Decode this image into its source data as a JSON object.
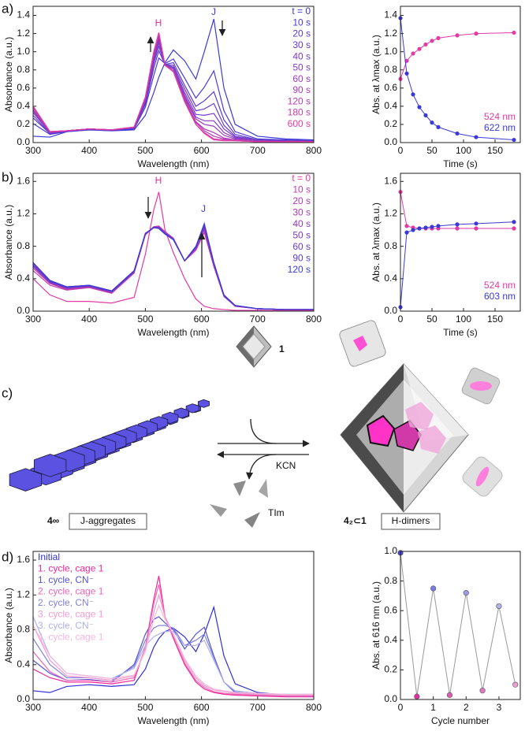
{
  "chart_data": [
    {
      "type": "line",
      "panel_label": "a)",
      "x_label": "Wavelength (nm)",
      "y_label": "Absorbance (a.u.)",
      "xlim": [
        300,
        800
      ],
      "xticks": [
        300,
        400,
        500,
        600,
        700,
        800
      ],
      "ylim": [
        0,
        1.5
      ],
      "yticks": [
        {
          "value": 0,
          "label": "0.0"
        },
        0.2,
        0.4,
        0.6,
        0.8,
        {
          "value": 1,
          "label": "1.0"
        },
        1.2,
        1.4
      ],
      "legend": "upper right",
      "annotations": [
        {
          "text": "H",
          "color": "#e0309f"
        },
        {
          "text": "J",
          "color": "#3a3ad6"
        }
      ],
      "x": [
        300,
        330,
        360,
        400,
        440,
        480,
        500,
        515,
        524,
        535,
        550,
        570,
        590,
        605,
        622,
        640,
        660,
        700,
        750,
        800
      ],
      "series": [
        {
          "name": "t = 0",
          "color": "#3a3ad6",
          "values": [
            0.07,
            0.06,
            0.12,
            0.14,
            0.13,
            0.14,
            0.3,
            0.55,
            0.72,
            0.88,
            1.02,
            0.9,
            0.7,
            1.0,
            1.36,
            0.6,
            0.2,
            0.07,
            0.04,
            0.03
          ]
        },
        {
          "name": "10 s",
          "color": "#4a3ad4",
          "values": [
            0.21,
            0.09,
            0.12,
            0.14,
            0.13,
            0.15,
            0.39,
            0.74,
            0.93,
            0.87,
            0.92,
            0.71,
            0.49,
            0.61,
            0.79,
            0.35,
            0.12,
            0.04,
            0.03,
            0.02
          ]
        },
        {
          "name": "20 s",
          "color": "#5a3ad0",
          "values": [
            0.27,
            0.1,
            0.13,
            0.15,
            0.14,
            0.16,
            0.42,
            0.82,
            1.01,
            0.86,
            0.88,
            0.63,
            0.4,
            0.46,
            0.56,
            0.25,
            0.09,
            0.03,
            0.02,
            0.02
          ]
        },
        {
          "name": "30 s",
          "color": "#6a3acb",
          "values": [
            0.3,
            0.1,
            0.13,
            0.15,
            0.14,
            0.16,
            0.44,
            0.87,
            1.06,
            0.86,
            0.85,
            0.59,
            0.35,
            0.37,
            0.43,
            0.19,
            0.07,
            0.03,
            0.02,
            0.02
          ]
        },
        {
          "name": "40 s",
          "color": "#7a3ac6",
          "values": [
            0.33,
            0.11,
            0.13,
            0.15,
            0.14,
            0.16,
            0.46,
            0.9,
            1.1,
            0.86,
            0.83,
            0.55,
            0.31,
            0.3,
            0.32,
            0.15,
            0.06,
            0.02,
            0.02,
            0.01
          ]
        },
        {
          "name": "50 s",
          "color": "#8a3ac1",
          "values": [
            0.35,
            0.11,
            0.13,
            0.15,
            0.14,
            0.17,
            0.47,
            0.93,
            1.13,
            0.85,
            0.82,
            0.52,
            0.28,
            0.24,
            0.24,
            0.11,
            0.05,
            0.02,
            0.01,
            0.01
          ]
        },
        {
          "name": "60 s",
          "color": "#9a3abc",
          "values": [
            0.36,
            0.11,
            0.13,
            0.15,
            0.14,
            0.17,
            0.48,
            0.95,
            1.16,
            0.85,
            0.81,
            0.5,
            0.26,
            0.2,
            0.18,
            0.08,
            0.04,
            0.02,
            0.01,
            0.01
          ]
        },
        {
          "name": "90 s",
          "color": "#aa3ab7",
          "values": [
            0.38,
            0.12,
            0.13,
            0.15,
            0.14,
            0.17,
            0.49,
            0.97,
            1.18,
            0.85,
            0.79,
            0.48,
            0.23,
            0.15,
            0.11,
            0.05,
            0.03,
            0.01,
            0.01,
            0.01
          ]
        },
        {
          "name": "120 s",
          "color": "#ba3ab2",
          "values": [
            0.39,
            0.12,
            0.13,
            0.15,
            0.14,
            0.17,
            0.49,
            0.99,
            1.2,
            0.85,
            0.79,
            0.46,
            0.22,
            0.13,
            0.07,
            0.04,
            0.03,
            0.01,
            0.01,
            0.01
          ]
        },
        {
          "name": "180 s",
          "color": "#ca3aad",
          "values": [
            0.4,
            0.12,
            0.13,
            0.15,
            0.14,
            0.17,
            0.5,
            1.0,
            1.21,
            0.85,
            0.78,
            0.45,
            0.2,
            0.11,
            0.04,
            0.03,
            0.02,
            0.01,
            0.01,
            0.01
          ]
        },
        {
          "name": "600 s",
          "color": "#e23aa6",
          "values": [
            0.4,
            0.12,
            0.13,
            0.15,
            0.14,
            0.17,
            0.5,
            1.0,
            1.21,
            0.85,
            0.78,
            0.45,
            0.2,
            0.1,
            0.03,
            0.02,
            0.02,
            0.01,
            0.01,
            0.01
          ]
        }
      ]
    },
    {
      "type": "line",
      "markers": true,
      "x_label": "Time (s)",
      "y_label": "Abs. at λmax (a.u.)",
      "xlim": [
        0,
        190
      ],
      "xticks": [
        0,
        50,
        100,
        150
      ],
      "ylim": [
        0,
        1.5
      ],
      "yticks": [
        {
          "value": 0,
          "label": "0.0"
        },
        0.2,
        0.4,
        0.6,
        0.8,
        {
          "value": 1,
          "label": "1.0"
        },
        1.2,
        1.4
      ],
      "legend": "lower right",
      "x": [
        0,
        10,
        20,
        30,
        40,
        50,
        60,
        90,
        120,
        180
      ],
      "series": [
        {
          "name": "524 nm",
          "color": "#e23aa6",
          "values": [
            0.7,
            0.9,
            0.98,
            1.03,
            1.08,
            1.12,
            1.15,
            1.18,
            1.2,
            1.21
          ]
        },
        {
          "name": "622 nm",
          "color": "#3a3ad6",
          "values": [
            1.37,
            0.76,
            0.53,
            0.39,
            0.3,
            0.22,
            0.17,
            0.1,
            0.06,
            0.03
          ]
        }
      ]
    },
    {
      "type": "line",
      "panel_label": "b)",
      "x_label": "Wavelength (nm)",
      "y_label": "Absorbance (a.u.)",
      "xlim": [
        300,
        800
      ],
      "xticks": [
        300,
        400,
        500,
        600,
        700,
        800
      ],
      "ylim": [
        0,
        1.7
      ],
      "yticks": [
        {
          "value": 0,
          "label": "0.0"
        },
        0.4,
        0.8,
        1.2,
        1.6
      ],
      "legend": "upper right",
      "annotations": [
        {
          "text": "H",
          "color": "#e0309f"
        },
        {
          "text": "J",
          "color": "#3a3ad6"
        }
      ],
      "x": [
        300,
        330,
        360,
        400,
        440,
        480,
        500,
        515,
        524,
        535,
        550,
        570,
        590,
        605,
        622,
        640,
        660,
        700,
        750,
        800
      ],
      "series": [
        {
          "name": "t = 0",
          "color": "#e23aa6",
          "values": [
            0.4,
            0.2,
            0.12,
            0.12,
            0.1,
            0.17,
            0.7,
            1.25,
            1.47,
            1.0,
            0.72,
            0.4,
            0.15,
            0.06,
            0.03,
            0.02,
            0.01,
            0.01,
            0.01,
            0.01
          ]
        },
        {
          "name": "10 s",
          "color": "#c83aae",
          "values": [
            0.5,
            0.32,
            0.26,
            0.29,
            0.22,
            0.47,
            0.94,
            1.04,
            1.05,
            0.98,
            0.9,
            0.62,
            0.75,
            0.97,
            0.55,
            0.18,
            0.06,
            0.03,
            0.02,
            0.02
          ]
        },
        {
          "name": "20 s",
          "color": "#b83ab3",
          "values": [
            0.53,
            0.34,
            0.27,
            0.3,
            0.23,
            0.48,
            0.95,
            1.04,
            1.04,
            0.97,
            0.89,
            0.62,
            0.77,
            1.0,
            0.57,
            0.19,
            0.06,
            0.03,
            0.02,
            0.02
          ]
        },
        {
          "name": "30 s",
          "color": "#a53ab9",
          "values": [
            0.55,
            0.35,
            0.28,
            0.3,
            0.23,
            0.48,
            0.95,
            1.04,
            1.04,
            0.97,
            0.89,
            0.62,
            0.77,
            1.02,
            0.57,
            0.19,
            0.06,
            0.03,
            0.02,
            0.02
          ]
        },
        {
          "name": "40 s",
          "color": "#933abe",
          "values": [
            0.56,
            0.35,
            0.28,
            0.31,
            0.24,
            0.49,
            0.95,
            1.03,
            1.03,
            0.96,
            0.89,
            0.62,
            0.78,
            1.03,
            0.58,
            0.19,
            0.07,
            0.03,
            0.02,
            0.02
          ]
        },
        {
          "name": "50 s",
          "color": "#803ac3",
          "values": [
            0.57,
            0.36,
            0.29,
            0.31,
            0.24,
            0.49,
            0.95,
            1.03,
            1.03,
            0.96,
            0.89,
            0.62,
            0.78,
            1.04,
            0.58,
            0.19,
            0.07,
            0.03,
            0.02,
            0.02
          ]
        },
        {
          "name": "60 s",
          "color": "#6d3ac8",
          "values": [
            0.57,
            0.36,
            0.29,
            0.31,
            0.24,
            0.49,
            0.95,
            1.03,
            1.03,
            0.96,
            0.89,
            0.62,
            0.79,
            1.05,
            0.59,
            0.19,
            0.07,
            0.03,
            0.02,
            0.02
          ]
        },
        {
          "name": "90 s",
          "color": "#5a3ace",
          "values": [
            0.59,
            0.37,
            0.3,
            0.32,
            0.25,
            0.5,
            0.96,
            1.03,
            1.02,
            0.95,
            0.88,
            0.62,
            0.79,
            1.07,
            0.59,
            0.2,
            0.07,
            0.03,
            0.02,
            0.02
          ]
        },
        {
          "name": "120 s",
          "color": "#3a3ad6",
          "values": [
            0.6,
            0.38,
            0.3,
            0.32,
            0.25,
            0.5,
            0.96,
            1.03,
            1.02,
            0.95,
            0.88,
            0.62,
            0.8,
            1.08,
            0.6,
            0.2,
            0.07,
            0.03,
            0.02,
            0.02
          ]
        }
      ]
    },
    {
      "type": "line",
      "markers": true,
      "x_label": "Time (s)",
      "y_label": "Abs. at λmax (a.u.)",
      "xlim": [
        0,
        190
      ],
      "xticks": [
        0,
        50,
        100,
        150
      ],
      "ylim": [
        0,
        1.7
      ],
      "yticks": [
        {
          "value": 0,
          "label": "0.0"
        },
        0.4,
        0.8,
        1.2,
        1.6
      ],
      "legend": "lower right",
      "x": [
        0,
        10,
        20,
        30,
        40,
        50,
        60,
        90,
        120,
        180
      ],
      "series": [
        {
          "name": "524 nm",
          "color": "#e23aa6",
          "values": [
            1.47,
            1.05,
            1.03,
            1.02,
            1.02,
            1.02,
            1.02,
            1.02,
            1.02,
            1.02
          ]
        },
        {
          "name": "603 nm",
          "color": "#3a3ad6",
          "values": [
            0.05,
            0.97,
            1.0,
            1.02,
            1.03,
            1.04,
            1.05,
            1.07,
            1.08,
            1.1
          ]
        }
      ]
    },
    {
      "type": "line",
      "panel_label": "d)",
      "x_label": "Wavelength (nm)",
      "y_label": "Absorbance (a.u.)",
      "xlim": [
        300,
        800
      ],
      "xticks": [
        300,
        400,
        500,
        600,
        700,
        800
      ],
      "ylim": [
        0,
        1.7
      ],
      "yticks": [
        {
          "value": 0,
          "label": "0.0"
        },
        0.4,
        0.8,
        1.2,
        1.6
      ],
      "legend": "upper left",
      "x": [
        300,
        330,
        360,
        400,
        440,
        480,
        500,
        515,
        524,
        535,
        550,
        570,
        590,
        605,
        622,
        640,
        660,
        700,
        750,
        800
      ],
      "series": [
        {
          "name": "Initial",
          "color": "#2f2fd6",
          "values": [
            0.1,
            0.08,
            0.15,
            0.17,
            0.15,
            0.17,
            0.35,
            0.6,
            0.7,
            0.78,
            0.82,
            0.72,
            0.55,
            0.75,
            1.06,
            0.5,
            0.18,
            0.08,
            0.05,
            0.04
          ]
        },
        {
          "name": "1. cycle, cage 1",
          "color": "#f0289a",
          "values": [
            0.35,
            0.25,
            0.2,
            0.2,
            0.18,
            0.22,
            0.6,
            1.15,
            1.42,
            0.95,
            0.7,
            0.4,
            0.2,
            0.12,
            0.08,
            0.06,
            0.05,
            0.04,
            0.03,
            0.03
          ]
        },
        {
          "name": "1. cycle, CN⁻",
          "color": "#5353d9",
          "values": [
            0.45,
            0.3,
            0.22,
            0.23,
            0.2,
            0.4,
            0.75,
            0.92,
            0.95,
            0.88,
            0.8,
            0.58,
            0.75,
            0.83,
            0.5,
            0.2,
            0.08,
            0.05,
            0.04,
            0.04
          ]
        },
        {
          "name": "2. cycle, cage 1",
          "color": "#f266b6",
          "values": [
            0.55,
            0.32,
            0.22,
            0.22,
            0.2,
            0.25,
            0.6,
            1.1,
            1.32,
            0.95,
            0.72,
            0.42,
            0.22,
            0.14,
            0.09,
            0.07,
            0.06,
            0.05,
            0.04,
            0.04
          ]
        },
        {
          "name": "2. cycle, CN⁻",
          "color": "#8080e0",
          "values": [
            0.7,
            0.4,
            0.25,
            0.25,
            0.22,
            0.38,
            0.68,
            0.82,
            0.85,
            0.85,
            0.82,
            0.62,
            0.68,
            0.75,
            0.48,
            0.2,
            0.09,
            0.06,
            0.05,
            0.05
          ]
        },
        {
          "name": "3. cycle, cage 1",
          "color": "#f39ad0",
          "values": [
            0.85,
            0.45,
            0.27,
            0.25,
            0.22,
            0.27,
            0.58,
            1.0,
            1.2,
            0.95,
            0.75,
            0.45,
            0.25,
            0.16,
            0.11,
            0.09,
            0.07,
            0.06,
            0.05,
            0.05
          ]
        },
        {
          "name": "3. cycle, CN⁻",
          "color": "#b0b0ea",
          "values": [
            0.95,
            0.5,
            0.3,
            0.27,
            0.24,
            0.36,
            0.62,
            0.72,
            0.75,
            0.78,
            0.78,
            0.62,
            0.62,
            0.68,
            0.45,
            0.2,
            0.1,
            0.07,
            0.06,
            0.06
          ]
        },
        {
          "name": "4. cycle, cage 1",
          "color": "#f5b8dd",
          "values": [
            0.85,
            0.5,
            0.3,
            0.27,
            0.24,
            0.28,
            0.55,
            0.92,
            1.08,
            0.92,
            0.75,
            0.47,
            0.27,
            0.18,
            0.12,
            0.1,
            0.08,
            0.07,
            0.06,
            0.06
          ]
        }
      ]
    },
    {
      "type": "line",
      "markers": true,
      "x_label": "Cycle number",
      "y_label": "Abs. at 616 nm (a.u.)",
      "xlim": [
        0,
        3.65
      ],
      "xticks": [
        0,
        1,
        2,
        3
      ],
      "ylim": [
        0,
        1.0
      ],
      "yticks": [
        {
          "value": 0,
          "label": "0.0"
        },
        0.2,
        0.4,
        0.6,
        0.8,
        {
          "value": 1,
          "label": "1.0"
        }
      ],
      "x": [
        0,
        0.5,
        1,
        1.5,
        2,
        2.5,
        3,
        3.5
      ],
      "series": [
        {
          "color": "#999999",
          "values": [
            0.99,
            0.02,
            0.75,
            0.03,
            0.72,
            0.06,
            0.63,
            0.1
          ],
          "point_colors": [
            "#4a4ad8",
            "#e0309f",
            "#7a7ae0",
            "#e05cb0",
            "#9a9ae6",
            "#e07ac0",
            "#b0b0ea",
            "#eaa0d0"
          ]
        }
      ]
    }
  ],
  "diagram": {
    "panel_label": "c)",
    "cage_label": "1",
    "reagent": "KCN",
    "byproduct": "TIm",
    "left_compound": "4∞",
    "left_caption": "J-aggregates",
    "right_compound": "4₂⊂1",
    "right_caption": "H-dimers"
  }
}
